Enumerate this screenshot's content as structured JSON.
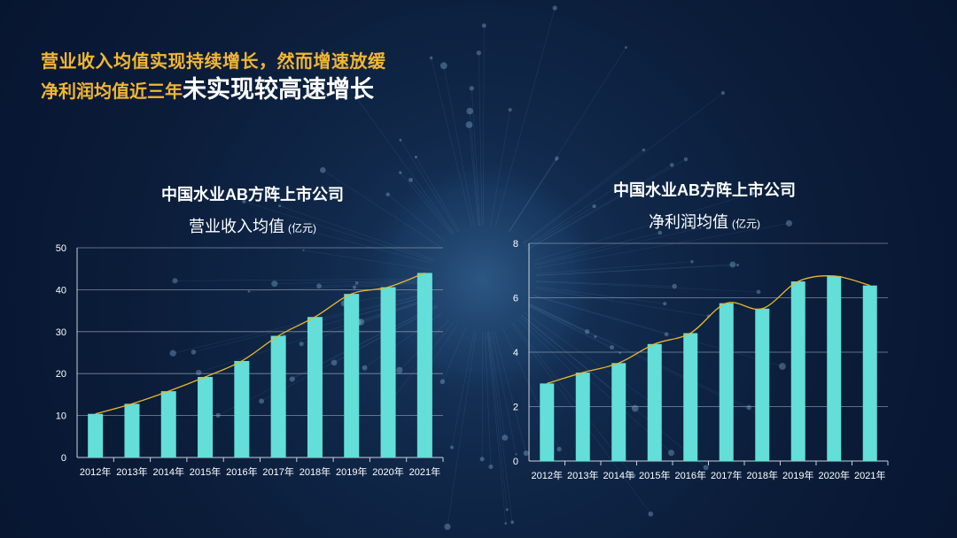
{
  "headline": {
    "line1": "营业收入均值实现持续增长，然而增速放缓",
    "line2_small": "净利润均值近三年",
    "line2_big": "未实现较高速增长"
  },
  "colors": {
    "bar": "#63ded8",
    "trend": "#e8b62c",
    "grid": "#9aa6b8",
    "headline_accent": "#f2b630"
  },
  "chart_data": [
    {
      "type": "bar",
      "title": "中国水业AB方阵上市公司",
      "subtitle": "营业收入均值",
      "unit": "(亿元)",
      "categories": [
        "2012年",
        "2013年",
        "2014年",
        "2015年",
        "2016年",
        "2017年",
        "2018年",
        "2019年",
        "2020年",
        "2021年"
      ],
      "values": [
        10.4,
        12.8,
        15.8,
        19.2,
        23.0,
        29.0,
        33.5,
        39.0,
        40.6,
        44.0
      ],
      "ylim": [
        0,
        50
      ],
      "yticks": [
        "0",
        "10",
        "20",
        "30",
        "40",
        "50"
      ],
      "trendline": true,
      "grid": true
    },
    {
      "type": "bar",
      "title": "中国水业AB方阵上市公司",
      "subtitle": "净利润均值",
      "unit": "(亿元)",
      "categories": [
        "2012年",
        "2013年",
        "2014年",
        "2015年",
        "2016年",
        "2017年",
        "2018年",
        "2019年",
        "2020年",
        "2021年"
      ],
      "values": [
        2.85,
        3.25,
        3.6,
        4.3,
        4.7,
        5.8,
        5.6,
        6.6,
        6.8,
        6.45
      ],
      "ylim": [
        0,
        8
      ],
      "yticks": [
        "0",
        "2",
        "4",
        "6",
        "8"
      ],
      "trendline": true,
      "grid": true
    }
  ]
}
